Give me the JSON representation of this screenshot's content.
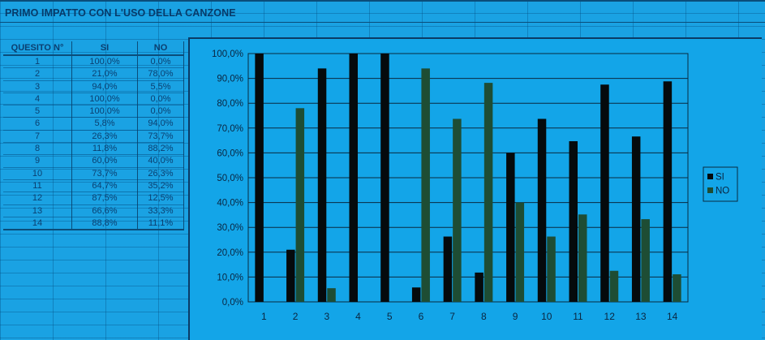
{
  "sheet": {
    "title": "PRIMO IMPATTO CON L'USO DELLA CANZONE"
  },
  "table": {
    "headers": [
      "QUESITO N°",
      "SI",
      "NO"
    ],
    "rows": [
      [
        "1",
        "100,0%",
        "0,0%"
      ],
      [
        "2",
        "21,0%",
        "78,0%"
      ],
      [
        "3",
        "94,0%",
        "5,5%"
      ],
      [
        "4",
        "100,0%",
        "0,0%"
      ],
      [
        "5",
        "100,0%",
        "0,0%"
      ],
      [
        "6",
        "5,8%",
        "94,0%"
      ],
      [
        "7",
        "26,3%",
        "73,7%"
      ],
      [
        "8",
        "11,8%",
        "88,2%"
      ],
      [
        "9",
        "60,0%",
        "40,0%"
      ],
      [
        "10",
        "73,7%",
        "26,3%"
      ],
      [
        "11",
        "64,7%",
        "35,2%"
      ],
      [
        "12",
        "87,5%",
        "12,5%"
      ],
      [
        "13",
        "66,6%",
        "33,3%"
      ],
      [
        "14",
        "88,8%",
        "11,1%"
      ]
    ]
  },
  "colors": {
    "background": "#1aa2e3",
    "si": "#050a0c",
    "no": "#1e4d34",
    "grid": "#0a2a40"
  },
  "chart_data": {
    "type": "bar",
    "categories": [
      "1",
      "2",
      "3",
      "4",
      "5",
      "6",
      "7",
      "8",
      "9",
      "10",
      "11",
      "12",
      "13",
      "14"
    ],
    "series": [
      {
        "name": "SI",
        "values": [
          100.0,
          21.0,
          94.0,
          100.0,
          100.0,
          5.8,
          26.3,
          11.8,
          60.0,
          73.7,
          64.7,
          87.5,
          66.6,
          88.8
        ]
      },
      {
        "name": "NO",
        "values": [
          0.0,
          78.0,
          5.5,
          0.0,
          0.0,
          94.0,
          73.7,
          88.2,
          40.0,
          26.3,
          35.2,
          12.5,
          33.3,
          11.1
        ]
      }
    ],
    "ylim": [
      0,
      100
    ],
    "yticks": [
      "0,0%",
      "10,0%",
      "20,0%",
      "30,0%",
      "40,0%",
      "50,0%",
      "60,0%",
      "70,0%",
      "80,0%",
      "90,0%",
      "100,0%"
    ],
    "legend": "right",
    "grid": true
  }
}
